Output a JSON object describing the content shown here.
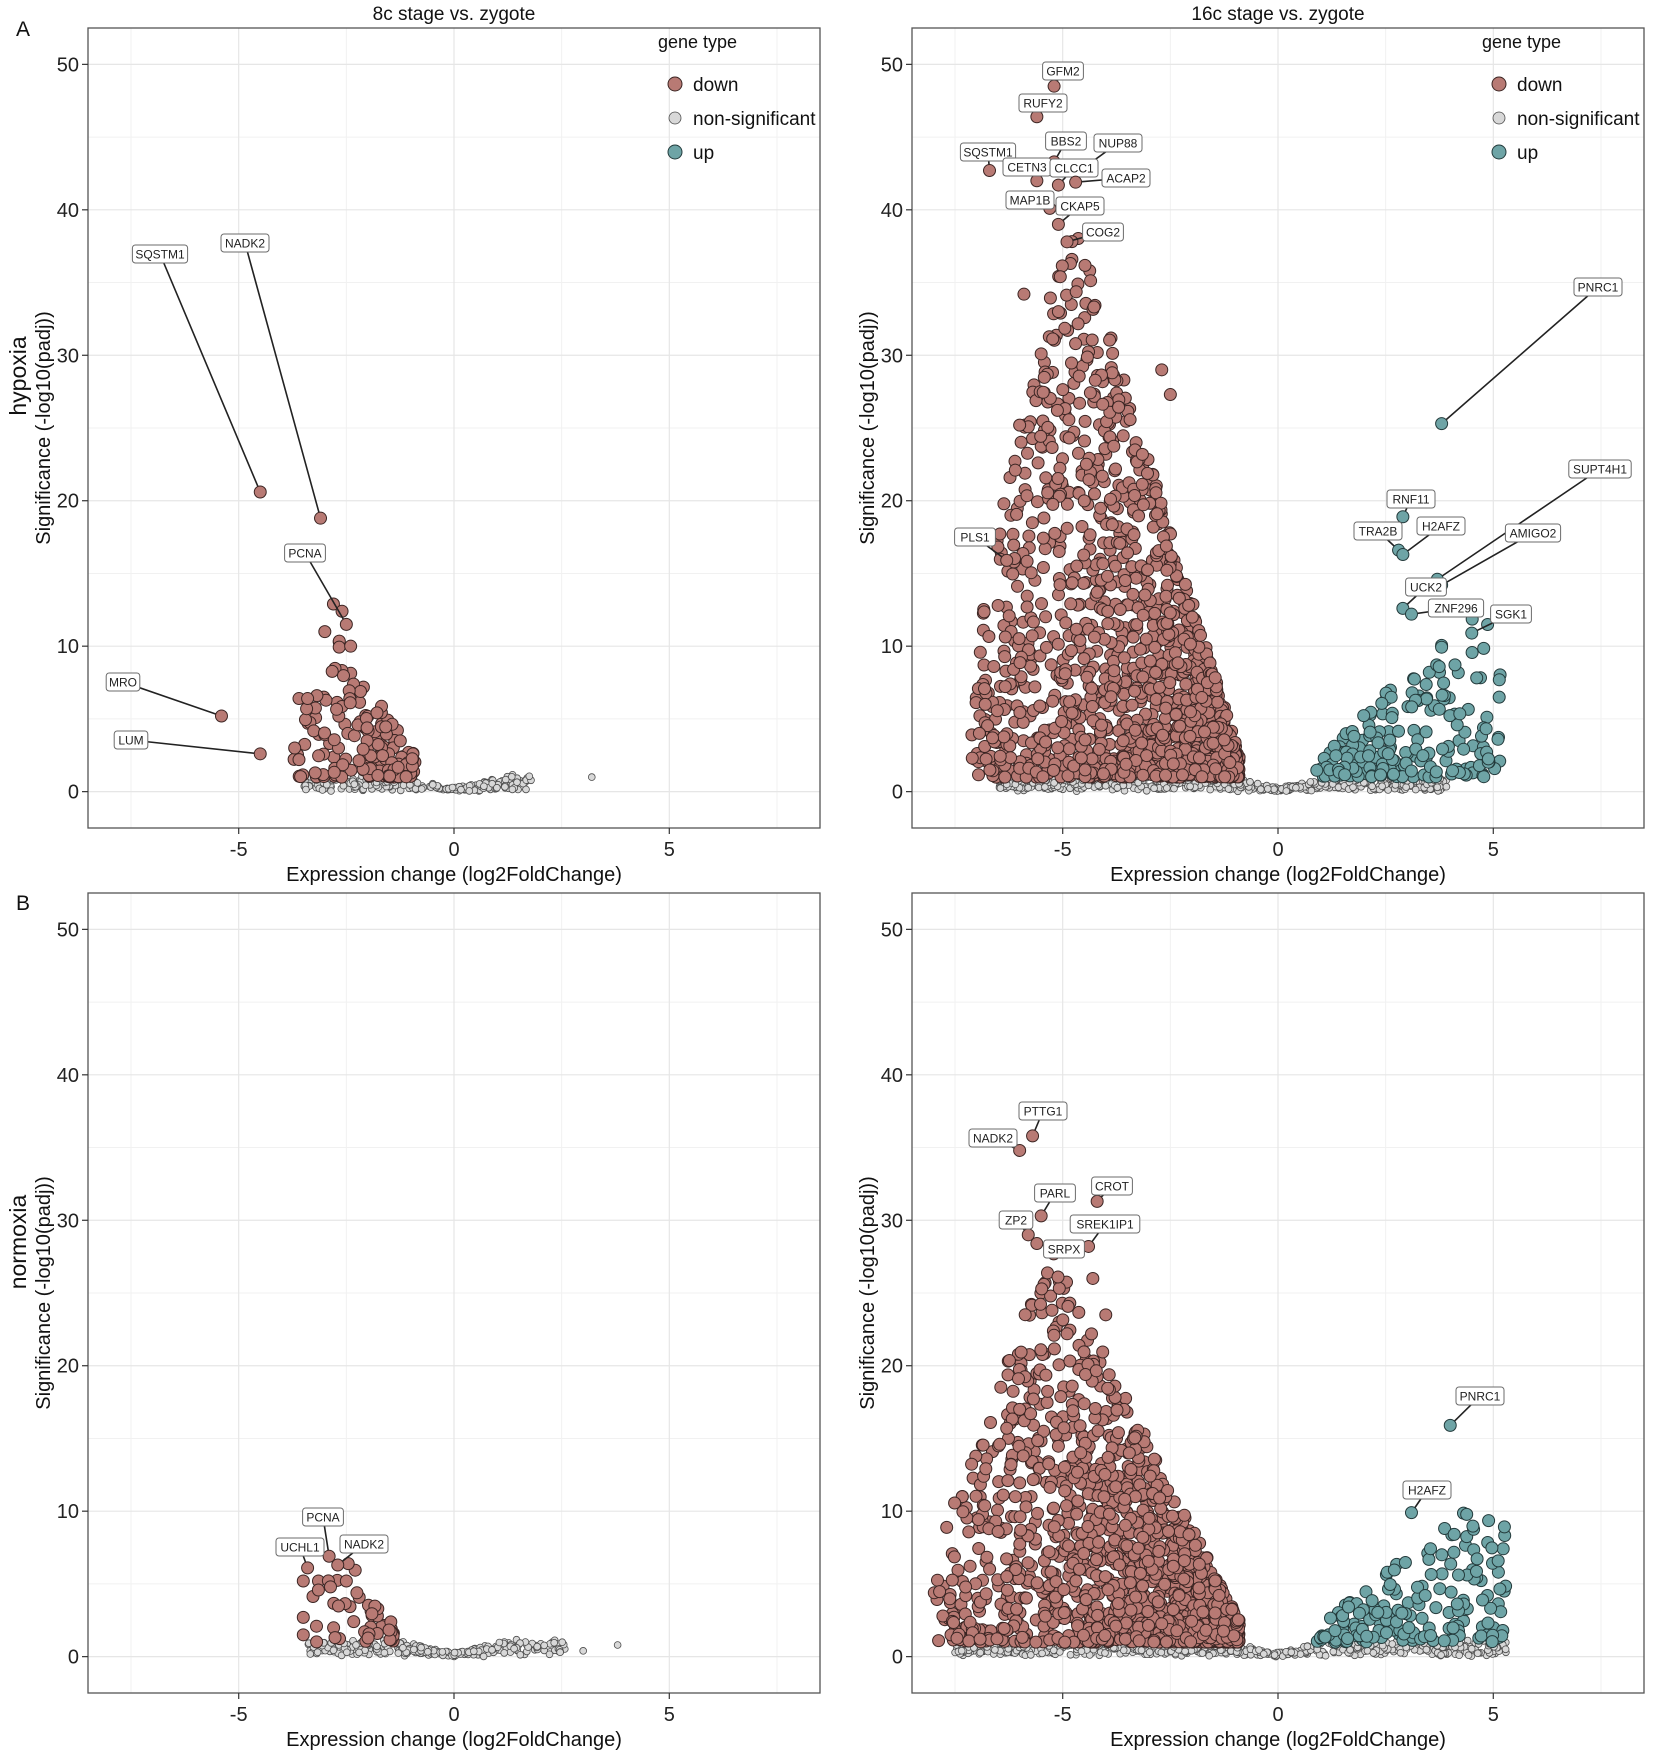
{
  "row_labels": [
    "hypoxia",
    "normoxia"
  ],
  "panel_letters": [
    "A",
    "B"
  ],
  "column_titles": [
    "8c stage vs. zygote",
    "16c stage vs. zygote"
  ],
  "colors": {
    "down": "#b87a74",
    "non_significant": "#d8d8d8",
    "up": "#6ea4a6"
  },
  "chart_data": [
    {
      "id": "hypoxia-8c",
      "type": "scatter",
      "title": "8c stage vs. zygote",
      "row": "hypoxia",
      "panel_letter": "A",
      "xlabel": "Expression change (log2FoldChange)",
      "ylabel": "Significance (-log10(padj))",
      "xlim": [
        -8.5,
        8.5
      ],
      "ylim": [
        -2.5,
        52.5
      ],
      "xticks": [
        -5,
        0,
        5
      ],
      "yticks": [
        0,
        10,
        20,
        30,
        40,
        50
      ],
      "grid": true,
      "legend": {
        "title": "gene type",
        "position": "top-right",
        "entries": [
          "down",
          "non-significant",
          "up"
        ]
      },
      "labeled_points": [
        {
          "gene": "SQSTM1",
          "x": -4.5,
          "y": 20.6,
          "category": "down"
        },
        {
          "gene": "NADK2",
          "x": -3.1,
          "y": 18.8,
          "category": "down"
        },
        {
          "gene": "PCNA",
          "x": -2.5,
          "y": 11.5,
          "category": "down"
        },
        {
          "gene": "MRO",
          "x": -5.4,
          "y": 5.2,
          "category": "down"
        },
        {
          "gene": "LUM",
          "x": -4.5,
          "y": 2.6,
          "category": "down"
        }
      ],
      "cloud": {
        "down_count": 170,
        "down_x_range": [
          -3.8,
          -0.9
        ],
        "down_y_peak": 8.5,
        "extra_down_points": [
          [
            -2.8,
            12.9
          ],
          [
            -2.6,
            12.4
          ],
          [
            -3.0,
            11.0
          ],
          [
            -2.4,
            10.0
          ],
          [
            -3.6,
            6.4
          ],
          [
            -3.4,
            6.4
          ],
          [
            -3.7,
            3.0
          ],
          [
            -3.6,
            2.2
          ]
        ],
        "ns_count": 260,
        "ns_x_range": [
          -3.5,
          1.8
        ],
        "ns_extra_points": [
          [
            3.2,
            1.0
          ]
        ],
        "up_count": 0
      }
    },
    {
      "id": "hypoxia-16c",
      "type": "scatter",
      "title": "16c stage vs. zygote",
      "row": "hypoxia",
      "panel_letter": "",
      "xlabel": "Expression change (log2FoldChange)",
      "ylabel": "Significance (-log10(padj))",
      "xlim": [
        -8.5,
        8.5
      ],
      "ylim": [
        -2.5,
        52.5
      ],
      "xticks": [
        -5,
        0,
        5
      ],
      "yticks": [
        0,
        10,
        20,
        30,
        40,
        50
      ],
      "grid": true,
      "legend": {
        "title": "gene type",
        "position": "top-right",
        "entries": [
          "down",
          "non-significant",
          "up"
        ]
      },
      "labeled_points": [
        {
          "gene": "GFM2",
          "x": -5.2,
          "y": 48.5,
          "category": "down"
        },
        {
          "gene": "RUFY2",
          "x": -5.6,
          "y": 46.4,
          "category": "down"
        },
        {
          "gene": "BBS2",
          "x": -5.2,
          "y": 43.3,
          "category": "down"
        },
        {
          "gene": "NUP88",
          "x": -4.6,
          "y": 42.7,
          "category": "down"
        },
        {
          "gene": "SQSTM1",
          "x": -6.7,
          "y": 42.7,
          "category": "down"
        },
        {
          "gene": "CETN3",
          "x": -5.6,
          "y": 42.0,
          "category": "down"
        },
        {
          "gene": "CLCC1",
          "x": -5.1,
          "y": 41.7,
          "category": "down"
        },
        {
          "gene": "ACAP2",
          "x": -4.7,
          "y": 41.9,
          "category": "down"
        },
        {
          "gene": "MAP1B",
          "x": -5.3,
          "y": 40.1,
          "category": "down"
        },
        {
          "gene": "CKAP5",
          "x": -5.1,
          "y": 39.0,
          "category": "down"
        },
        {
          "gene": "COG2",
          "x": -4.9,
          "y": 37.8,
          "category": "down"
        },
        {
          "gene": "PLS1",
          "x": -6.3,
          "y": 15.9,
          "category": "down"
        },
        {
          "gene": "PNRC1",
          "x": 3.8,
          "y": 25.3,
          "category": "up"
        },
        {
          "gene": "RNF11",
          "x": 2.9,
          "y": 18.9,
          "category": "up"
        },
        {
          "gene": "TRA2B",
          "x": 2.8,
          "y": 16.6,
          "category": "up"
        },
        {
          "gene": "H2AFZ",
          "x": 2.9,
          "y": 16.3,
          "category": "up"
        },
        {
          "gene": "SUPT4H1",
          "x": 3.7,
          "y": 14.6,
          "category": "up"
        },
        {
          "gene": "AMIGO2",
          "x": 3.8,
          "y": 14.2,
          "category": "up"
        },
        {
          "gene": "UCK2",
          "x": 2.9,
          "y": 12.6,
          "category": "up"
        },
        {
          "gene": "ZNF296",
          "x": 3.1,
          "y": 12.2,
          "category": "up"
        },
        {
          "gene": "SGK1",
          "x": 4.5,
          "y": 10.9,
          "category": "up"
        }
      ],
      "cloud": {
        "down_count": 1500,
        "down_x_range": [
          -7.2,
          -0.9
        ],
        "down_y_peak": 38,
        "extra_down_points": [
          [
            -5.9,
            34.2
          ],
          [
            -5.5,
            30.1
          ],
          [
            -6.0,
            25.2
          ],
          [
            -5.1,
            33.0
          ],
          [
            -2.5,
            27.3
          ],
          [
            -2.7,
            29.0
          ],
          [
            -6.1,
            22.1
          ],
          [
            -6.5,
            12.8
          ],
          [
            -6.6,
            8.6
          ],
          [
            -7.1,
            2.3
          ],
          [
            -6.8,
            6.0
          ]
        ],
        "ns_count": 700,
        "ns_x_range": [
          -6.5,
          4.0
        ],
        "ns_extra_points": [
          [
            -6.3,
            0.5
          ],
          [
            -6.1,
            0.5
          ],
          [
            -5.2,
            0.6
          ],
          [
            3.7,
            0.3
          ]
        ],
        "up_count": 190,
        "up_x_range": [
          0.9,
          5.2
        ],
        "up_y_peak": 10
      }
    },
    {
      "id": "normoxia-8c",
      "type": "scatter",
      "title": "",
      "row": "normoxia",
      "panel_letter": "B",
      "xlabel": "Expression change (log2FoldChange)",
      "ylabel": "Significance (-log10(padj))",
      "xlim": [
        -8.5,
        8.5
      ],
      "ylim": [
        -2.5,
        52.5
      ],
      "xticks": [
        -5,
        0,
        5
      ],
      "yticks": [
        0,
        10,
        20,
        30,
        40,
        50
      ],
      "grid": true,
      "labeled_points": [
        {
          "gene": "PCNA",
          "x": -2.9,
          "y": 6.9,
          "category": "down"
        },
        {
          "gene": "UCHL1",
          "x": -3.4,
          "y": 6.1,
          "category": "down"
        },
        {
          "gene": "NADK2",
          "x": -2.7,
          "y": 6.3,
          "category": "down"
        }
      ],
      "cloud": {
        "down_count": 45,
        "down_x_range": [
          -3.5,
          -1.4
        ],
        "down_y_peak": 5.5,
        "extra_down_points": [
          [
            -3.5,
            5.2
          ],
          [
            -3.5,
            2.7
          ],
          [
            -3.5,
            1.5
          ],
          [
            -2.5,
            5.2
          ]
        ],
        "ns_count": 280,
        "ns_x_range": [
          -3.4,
          2.6
        ],
        "ns_extra_points": [
          [
            3.0,
            0.4
          ],
          [
            3.8,
            0.8
          ]
        ],
        "up_count": 0
      }
    },
    {
      "id": "normoxia-16c",
      "type": "scatter",
      "title": "",
      "row": "normoxia",
      "panel_letter": "",
      "xlabel": "Expression change (log2FoldChange)",
      "ylabel": "Significance (-log10(padj))",
      "xlim": [
        -8.5,
        8.5
      ],
      "ylim": [
        -2.5,
        52.5
      ],
      "xticks": [
        -5,
        0,
        5
      ],
      "yticks": [
        0,
        10,
        20,
        30,
        40,
        50
      ],
      "grid": true,
      "labeled_points": [
        {
          "gene": "PTTG1",
          "x": -5.7,
          "y": 35.8,
          "category": "down"
        },
        {
          "gene": "NADK2",
          "x": -6.0,
          "y": 34.8,
          "category": "down"
        },
        {
          "gene": "CROT",
          "x": -4.2,
          "y": 31.3,
          "category": "down"
        },
        {
          "gene": "PARL",
          "x": -5.5,
          "y": 30.3,
          "category": "down"
        },
        {
          "gene": "ZP2",
          "x": -5.8,
          "y": 29.0,
          "category": "down"
        },
        {
          "gene": "SREK1IP1",
          "x": -4.4,
          "y": 28.2,
          "category": "down"
        },
        {
          "gene": "SRPX",
          "x": -5.6,
          "y": 28.4,
          "category": "down"
        },
        {
          "gene": "PNRC1",
          "x": 4.0,
          "y": 15.9,
          "category": "up"
        },
        {
          "gene": "H2AFZ",
          "x": 3.1,
          "y": 9.9,
          "category": "up"
        }
      ],
      "cloud": {
        "down_count": 1400,
        "down_x_range": [
          -8.0,
          -0.9
        ],
        "down_y_peak": 26,
        "extra_down_points": [
          [
            -6.3,
            15.7
          ],
          [
            -6.0,
            17.0
          ],
          [
            -6.1,
            11.0
          ],
          [
            -6.5,
            8.6
          ],
          [
            -6.2,
            13.2
          ],
          [
            -4.3,
            26.0
          ],
          [
            -4.0,
            23.5
          ]
        ],
        "ns_count": 650,
        "ns_x_range": [
          -7.5,
          5.3
        ],
        "ns_extra_points": [],
        "up_count": 170,
        "up_x_range": [
          0.9,
          5.3
        ],
        "up_y_peak": 8
      }
    }
  ]
}
